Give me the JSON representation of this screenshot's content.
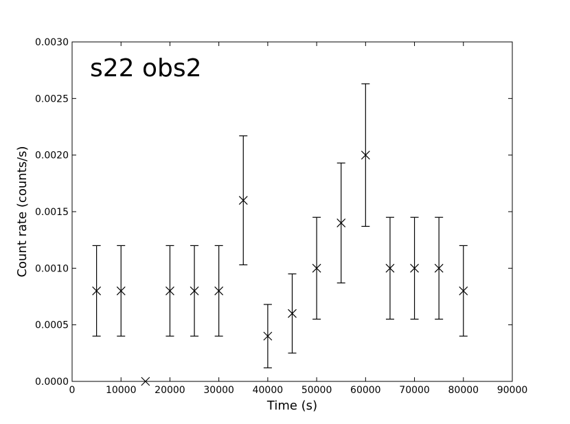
{
  "chart_data": {
    "type": "scatter",
    "annotation": "s22 obs2",
    "xlabel": "Time (s)",
    "ylabel": "Count rate (counts/s)",
    "xlim": [
      0,
      90000
    ],
    "ylim": [
      0,
      0.003
    ],
    "xticks": [
      "0",
      "10000",
      "20000",
      "30000",
      "40000",
      "50000",
      "60000",
      "70000",
      "80000",
      "90000"
    ],
    "yticks": [
      "0.0000",
      "0.0005",
      "0.0010",
      "0.0015",
      "0.0020",
      "0.0025",
      "0.0030"
    ],
    "grid": false,
    "marker": "x",
    "color": "#000000",
    "points": [
      {
        "x": 5000,
        "y": 0.0008,
        "yerr": 0.0004
      },
      {
        "x": 10000,
        "y": 0.0008,
        "yerr": 0.0004
      },
      {
        "x": 15000,
        "y": 0.0,
        "yerr": 0.0
      },
      {
        "x": 20000,
        "y": 0.0008,
        "yerr": 0.0004
      },
      {
        "x": 25000,
        "y": 0.0008,
        "yerr": 0.0004
      },
      {
        "x": 30000,
        "y": 0.0008,
        "yerr": 0.0004
      },
      {
        "x": 35000,
        "y": 0.0016,
        "yerr": 0.00057
      },
      {
        "x": 40000,
        "y": 0.0004,
        "yerr": 0.00028
      },
      {
        "x": 45000,
        "y": 0.0006,
        "yerr": 0.00035
      },
      {
        "x": 50000,
        "y": 0.001,
        "yerr": 0.00045
      },
      {
        "x": 55000,
        "y": 0.0014,
        "yerr": 0.00053
      },
      {
        "x": 60000,
        "y": 0.002,
        "yerr": 0.00063
      },
      {
        "x": 65000,
        "y": 0.001,
        "yerr": 0.00045
      },
      {
        "x": 70000,
        "y": 0.001,
        "yerr": 0.00045
      },
      {
        "x": 75000,
        "y": 0.001,
        "yerr": 0.00045
      },
      {
        "x": 80000,
        "y": 0.0008,
        "yerr": 0.0004
      }
    ]
  }
}
